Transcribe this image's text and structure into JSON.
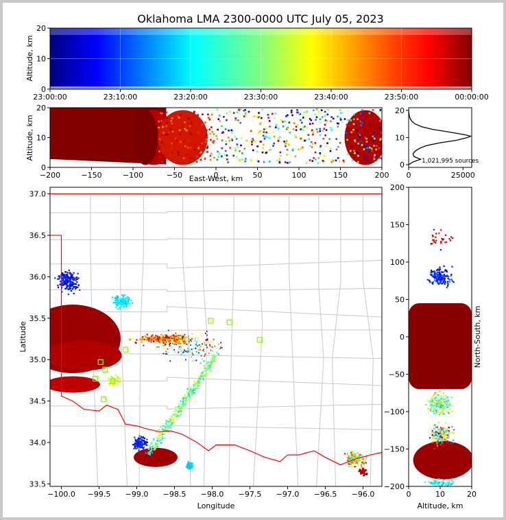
{
  "chart_data": [
    {
      "type": "heatmap",
      "panel": "altitude-vs-time",
      "title": "Oklahoma LMA 2300-0000 UTC July 05, 2023",
      "ylabel": "Altitude, km",
      "ylim": [
        0,
        20
      ],
      "yticks": [
        "0",
        "10",
        "20"
      ],
      "xticks": [
        "23:00:00",
        "23:10:00",
        "23:20:00",
        "23:30:00",
        "23:40:00",
        "23:50:00",
        "00:00:00"
      ],
      "colormap": "jet (time)"
    },
    {
      "type": "scatter",
      "panel": "altitude-vs-east-west",
      "xlabel": "East-West, km",
      "ylabel": "Altitude, km",
      "xlim": [
        -200,
        200
      ],
      "ylim": [
        0,
        20
      ],
      "xticks": [
        "−200",
        "−150",
        "−100",
        "−50",
        "0",
        "50",
        "100",
        "150",
        "200"
      ],
      "yticks": [
        "0",
        "10",
        "20"
      ]
    },
    {
      "type": "line",
      "panel": "altitude-histogram",
      "annotation": "1,021,995 sources",
      "xlim": [
        0,
        29000
      ],
      "ylim": [
        -1,
        21
      ],
      "xticks": [
        "0",
        "25000"
      ],
      "yticks": [
        "0",
        "10",
        "20"
      ],
      "counts": [
        {
          "alt": 0.0,
          "n": 0
        },
        {
          "alt": 1.0,
          "n": 2000
        },
        {
          "alt": 2.0,
          "n": 5500
        },
        {
          "alt": 3.0,
          "n": 2500
        },
        {
          "alt": 4.0,
          "n": 2000
        },
        {
          "alt": 5.0,
          "n": 3000
        },
        {
          "alt": 6.0,
          "n": 5000
        },
        {
          "alt": 7.0,
          "n": 8000
        },
        {
          "alt": 8.0,
          "n": 14000
        },
        {
          "alt": 9.0,
          "n": 22000
        },
        {
          "alt": 10.0,
          "n": 27000
        },
        {
          "alt": 10.5,
          "n": 28500
        },
        {
          "alt": 11.0,
          "n": 26000
        },
        {
          "alt": 12.0,
          "n": 19000
        },
        {
          "alt": 13.0,
          "n": 11000
        },
        {
          "alt": 14.0,
          "n": 6000
        },
        {
          "alt": 15.0,
          "n": 3000
        },
        {
          "alt": 16.0,
          "n": 1500
        },
        {
          "alt": 17.0,
          "n": 700
        },
        {
          "alt": 18.0,
          "n": 300
        },
        {
          "alt": 19.0,
          "n": 100
        },
        {
          "alt": 20.0,
          "n": 0
        }
      ]
    },
    {
      "type": "scatter",
      "panel": "plan-view-map",
      "xlabel": "Longitude",
      "ylabel": "Latitude",
      "xlim": [
        -100.15,
        -95.75
      ],
      "ylim": [
        33.47,
        37.08
      ],
      "xticks": [
        "−100.0",
        "−99.5",
        "−99.0",
        "−98.5",
        "−98.0",
        "−97.5",
        "−97.0",
        "−96.5",
        "−96.0"
      ],
      "yticks": [
        "33.5",
        "34.0",
        "34.5",
        "35.0",
        "35.5",
        "36.0",
        "36.5",
        "37.0"
      ],
      "state_border": "Oklahoma",
      "stations": [
        {
          "lon": -99.48,
          "lat": 34.97
        },
        {
          "lon": -99.42,
          "lat": 34.88
        },
        {
          "lon": -99.55,
          "lat": 34.77
        },
        {
          "lon": -99.32,
          "lat": 34.74
        },
        {
          "lon": -99.44,
          "lat": 34.52
        },
        {
          "lon": -99.15,
          "lat": 35.12
        },
        {
          "lon": -98.02,
          "lat": 35.47
        },
        {
          "lon": -97.77,
          "lat": 35.45
        },
        {
          "lon": -97.37,
          "lat": 35.24
        }
      ]
    },
    {
      "type": "scatter",
      "panel": "north-south-vs-altitude",
      "xlabel": "Altitude, km",
      "ylabel": "North-South, km",
      "xlim": [
        0,
        20
      ],
      "ylim": [
        -200,
        200
      ],
      "xticks": [
        "0",
        "10",
        "20"
      ],
      "yticks": [
        "−200",
        "−150",
        "−100",
        "−50",
        "0",
        "50",
        "100",
        "150",
        "200"
      ]
    }
  ]
}
